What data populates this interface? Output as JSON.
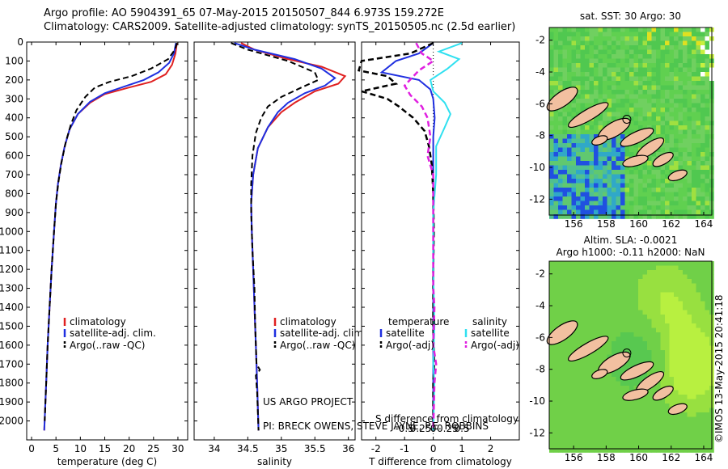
{
  "header": {
    "line1": "Argo profile: AO 5904391_65 07-May-2015 20150507_844 6.973S 159.272E",
    "line2": "Climatology: CARS2009. Satellite-adjusted climatology: synTS_20150505.nc (2.5d earlier)"
  },
  "credits": {
    "project": "US ARGO PROJECT",
    "pi": "PI: BRECK OWENS, STEVE JAYNE, P.E. ROBBINS",
    "imos": "©IMOS 13-May-2015 20:41:18"
  },
  "colors": {
    "climatology": "#e02020",
    "satellite": "#1f2fe0",
    "argo": "#000000",
    "satellite_sal": "#30e0f0",
    "argo_sal": "#e020e0"
  },
  "chart_data": [
    {
      "type": "line",
      "panel": "temperature",
      "xlabel": "temperature (deg C)",
      "ylabel": "",
      "xlim": [
        -1,
        32
      ],
      "ylim": [
        2100,
        0
      ],
      "xticks": [
        0,
        5,
        10,
        15,
        20,
        25,
        30
      ],
      "yticks": [
        0,
        100,
        200,
        300,
        400,
        500,
        600,
        700,
        800,
        900,
        1000,
        1100,
        1200,
        1300,
        1400,
        1500,
        1600,
        1700,
        1800,
        1900,
        2000
      ],
      "legend": [
        "climatology",
        "satellite-adj. clim.",
        "Argo(..raw -QC)"
      ],
      "series": [
        {
          "name": "climatology",
          "values": [
            [
              29.8,
              5
            ],
            [
              29.5,
              60
            ],
            [
              28.8,
              120
            ],
            [
              27.5,
              170
            ],
            [
              24.5,
              210
            ],
            [
              20,
              240
            ],
            [
              15,
              275
            ],
            [
              12,
              320
            ],
            [
              9.5,
              380
            ],
            [
              7.8,
              460
            ],
            [
              6.8,
              550
            ],
            [
              6,
              650
            ],
            [
              5.4,
              750
            ],
            [
              5,
              850
            ],
            [
              4.6,
              1000
            ],
            [
              4.1,
              1200
            ],
            [
              3.7,
              1400
            ],
            [
              3.3,
              1600
            ],
            [
              3,
              1800
            ],
            [
              2.6,
              2050
            ]
          ]
        },
        {
          "name": "satellite-adj. clim.",
          "values": [
            [
              29.6,
              5
            ],
            [
              29.2,
              60
            ],
            [
              28.2,
              110
            ],
            [
              26,
              160
            ],
            [
              23,
              200
            ],
            [
              19,
              235
            ],
            [
              15,
              270
            ],
            [
              12,
              315
            ],
            [
              9.5,
              380
            ],
            [
              7.8,
              460
            ],
            [
              6.8,
              550
            ],
            [
              6,
              650
            ],
            [
              5.4,
              750
            ],
            [
              5,
              850
            ],
            [
              4.6,
              1000
            ],
            [
              4.1,
              1200
            ],
            [
              3.7,
              1400
            ],
            [
              3.3,
              1600
            ],
            [
              3,
              1800
            ],
            [
              2.6,
              2050
            ]
          ]
        },
        {
          "name": "Argo(..raw -QC)",
          "values": [
            [
              29.8,
              5
            ],
            [
              29.4,
              40
            ],
            [
              28,
              90
            ],
            [
              24.5,
              140
            ],
            [
              20.5,
              180
            ],
            [
              16,
              210
            ],
            [
              13,
              240
            ],
            [
              11,
              290
            ],
            [
              9.2,
              360
            ],
            [
              8,
              440
            ],
            [
              7,
              530
            ],
            [
              6.1,
              640
            ],
            [
              5.5,
              740
            ],
            [
              5,
              850
            ],
            [
              4.6,
              1000
            ],
            [
              4.1,
              1200
            ],
            [
              3.7,
              1400
            ],
            [
              3.3,
              1600
            ],
            [
              3,
              1800
            ],
            [
              2.7,
              2000
            ]
          ]
        }
      ]
    },
    {
      "type": "line",
      "panel": "salinity",
      "xlabel": "salinity",
      "xlim": [
        33.7,
        36.1
      ],
      "ylim": [
        2100,
        0
      ],
      "xticks": [
        34,
        34.5,
        35,
        35.5,
        36
      ],
      "legend": [
        "climatology",
        "satellite-adj. clim.",
        "Argo(..raw -QC)"
      ],
      "series": [
        {
          "name": "climatology",
          "values": [
            [
              34.4,
              5
            ],
            [
              34.6,
              40
            ],
            [
              35.1,
              90
            ],
            [
              35.6,
              130
            ],
            [
              35.95,
              180
            ],
            [
              35.85,
              220
            ],
            [
              35.5,
              260
            ],
            [
              35.2,
              320
            ],
            [
              35,
              370
            ],
            [
              34.8,
              450
            ],
            [
              34.65,
              560
            ],
            [
              34.58,
              700
            ],
            [
              34.55,
              850
            ],
            [
              34.56,
              1000
            ],
            [
              34.58,
              1200
            ],
            [
              34.6,
              1400
            ],
            [
              34.62,
              1600
            ],
            [
              34.64,
              1800
            ],
            [
              34.66,
              2050
            ]
          ]
        },
        {
          "name": "satellite-adj. clim.",
          "values": [
            [
              34.3,
              5
            ],
            [
              34.6,
              40
            ],
            [
              35.2,
              90
            ],
            [
              35.6,
              140
            ],
            [
              35.8,
              190
            ],
            [
              35.65,
              230
            ],
            [
              35.35,
              270
            ],
            [
              35.1,
              320
            ],
            [
              34.95,
              370
            ],
            [
              34.8,
              450
            ],
            [
              34.65,
              560
            ],
            [
              34.58,
              700
            ],
            [
              34.55,
              850
            ],
            [
              34.56,
              1000
            ],
            [
              34.58,
              1200
            ],
            [
              34.6,
              1400
            ],
            [
              34.62,
              1600
            ],
            [
              34.64,
              1800
            ],
            [
              34.66,
              2050
            ]
          ]
        },
        {
          "name": "Argo(..raw -QC)",
          "values": [
            [
              34.25,
              5
            ],
            [
              34.5,
              40
            ],
            [
              35.1,
              100
            ],
            [
              35.5,
              160
            ],
            [
              35.55,
              200
            ],
            [
              35.3,
              240
            ],
            [
              35,
              290
            ],
            [
              34.8,
              340
            ],
            [
              34.7,
              400
            ],
            [
              34.62,
              480
            ],
            [
              34.57,
              600
            ],
            [
              34.55,
              750
            ],
            [
              34.55,
              900
            ],
            [
              34.57,
              1100
            ],
            [
              34.6,
              1300
            ],
            [
              34.61,
              1500
            ],
            [
              34.63,
              1700
            ],
            [
              34.68,
              1730
            ],
            [
              34.62,
              1760
            ],
            [
              34.64,
              1850
            ],
            [
              34.66,
              2050
            ]
          ]
        }
      ]
    },
    {
      "type": "line",
      "panel": "difference",
      "xlabel": "T difference from climatology",
      "x2label": "S difference from climatology",
      "xlim": [
        -2.5,
        3
      ],
      "ylim": [
        2100,
        0
      ],
      "xticks": [
        -2,
        -1,
        0,
        1,
        2
      ],
      "x2ticks": [
        "-0.5",
        "-0.25",
        "0",
        "0.25",
        "0.5"
      ],
      "legend_temperature": [
        "temperature",
        "satellite",
        "Argo(-adj)"
      ],
      "legend_salinity": [
        "salinity",
        "satellite",
        "Argo(-adj)"
      ],
      "series": [
        {
          "name": "temperature satellite",
          "values": [
            [
              0,
              5
            ],
            [
              -0.5,
              60
            ],
            [
              -1.3,
              100
            ],
            [
              -1.8,
              160
            ],
            [
              -0.5,
              200
            ],
            [
              -0.1,
              250
            ],
            [
              0,
              300
            ],
            [
              0.05,
              400
            ],
            [
              0,
              500
            ],
            [
              0,
              1000
            ],
            [
              0,
              1500
            ],
            [
              0,
              2050
            ]
          ]
        },
        {
          "name": "temperature Argo(-adj)",
          "values": [
            [
              0,
              5
            ],
            [
              -0.8,
              60
            ],
            [
              -2.5,
              100
            ],
            [
              -2.6,
              150
            ],
            [
              -1.6,
              180
            ],
            [
              -1.3,
              220
            ],
            [
              -2.5,
              260
            ],
            [
              -1.6,
              300
            ],
            [
              -1.2,
              340
            ],
            [
              -0.7,
              400
            ],
            [
              -0.3,
              470
            ],
            [
              -0.15,
              550
            ],
            [
              -0.05,
              650
            ],
            [
              0,
              800
            ],
            [
              0.02,
              1000
            ],
            [
              0,
              1200
            ],
            [
              0,
              1500
            ],
            [
              0.03,
              1700
            ],
            [
              0,
              1800
            ],
            [
              0,
              2050
            ]
          ]
        },
        {
          "name": "salinity satellite",
          "values": [
            [
              0.5,
              5
            ],
            [
              0.1,
              50
            ],
            [
              0.45,
              90
            ],
            [
              0.25,
              140
            ],
            [
              -0.05,
              200
            ],
            [
              0,
              260
            ],
            [
              0.2,
              320
            ],
            [
              0.3,
              380
            ],
            [
              0.2,
              450
            ],
            [
              0.05,
              550
            ],
            [
              0.05,
              700
            ],
            [
              0,
              900
            ],
            [
              0,
              1200
            ],
            [
              0.02,
              1500
            ],
            [
              0,
              1700
            ],
            [
              0.02,
              1800
            ],
            [
              0,
              2050
            ]
          ]
        },
        {
          "name": "salinity Argo(-adj)",
          "values": [
            [
              -0.3,
              5
            ],
            [
              -0.2,
              60
            ],
            [
              0,
              100
            ],
            [
              -0.25,
              150
            ],
            [
              -0.5,
              230
            ],
            [
              -0.4,
              280
            ],
            [
              -0.2,
              340
            ],
            [
              -0.1,
              400
            ],
            [
              -0.05,
              500
            ],
            [
              -0.1,
              600
            ],
            [
              0,
              700
            ],
            [
              0,
              900
            ],
            [
              0,
              1100
            ],
            [
              0,
              1300
            ],
            [
              0.02,
              1400
            ],
            [
              0,
              1600
            ],
            [
              0.05,
              1700
            ],
            [
              0.02,
              1800
            ],
            [
              0,
              2050
            ]
          ]
        }
      ]
    },
    {
      "type": "heatmap",
      "panel": "sst-map",
      "title": "sat. SST: 30  Argo: 30",
      "xlim": [
        154.5,
        164.5
      ],
      "ylim": [
        -13,
        -1.2
      ],
      "xticks": [
        156,
        158,
        160,
        162,
        164
      ],
      "yticks": [
        -2,
        -4,
        -6,
        -8,
        -10,
        -12
      ],
      "argo_position": [
        159.272,
        -6.973
      ]
    },
    {
      "type": "heatmap",
      "panel": "sla-map",
      "title": "Altim. SLA: -0.0021",
      "subtitle": "Argo h1000: -0.11  h2000: NaN",
      "xlim": [
        154.5,
        164.5
      ],
      "ylim": [
        -13,
        -1.2
      ],
      "xticks": [
        156,
        158,
        160,
        162,
        164
      ],
      "yticks": [
        -2,
        -4,
        -6,
        -8,
        -10,
        -12
      ],
      "argo_position": [
        159.272,
        -6.973
      ]
    }
  ]
}
